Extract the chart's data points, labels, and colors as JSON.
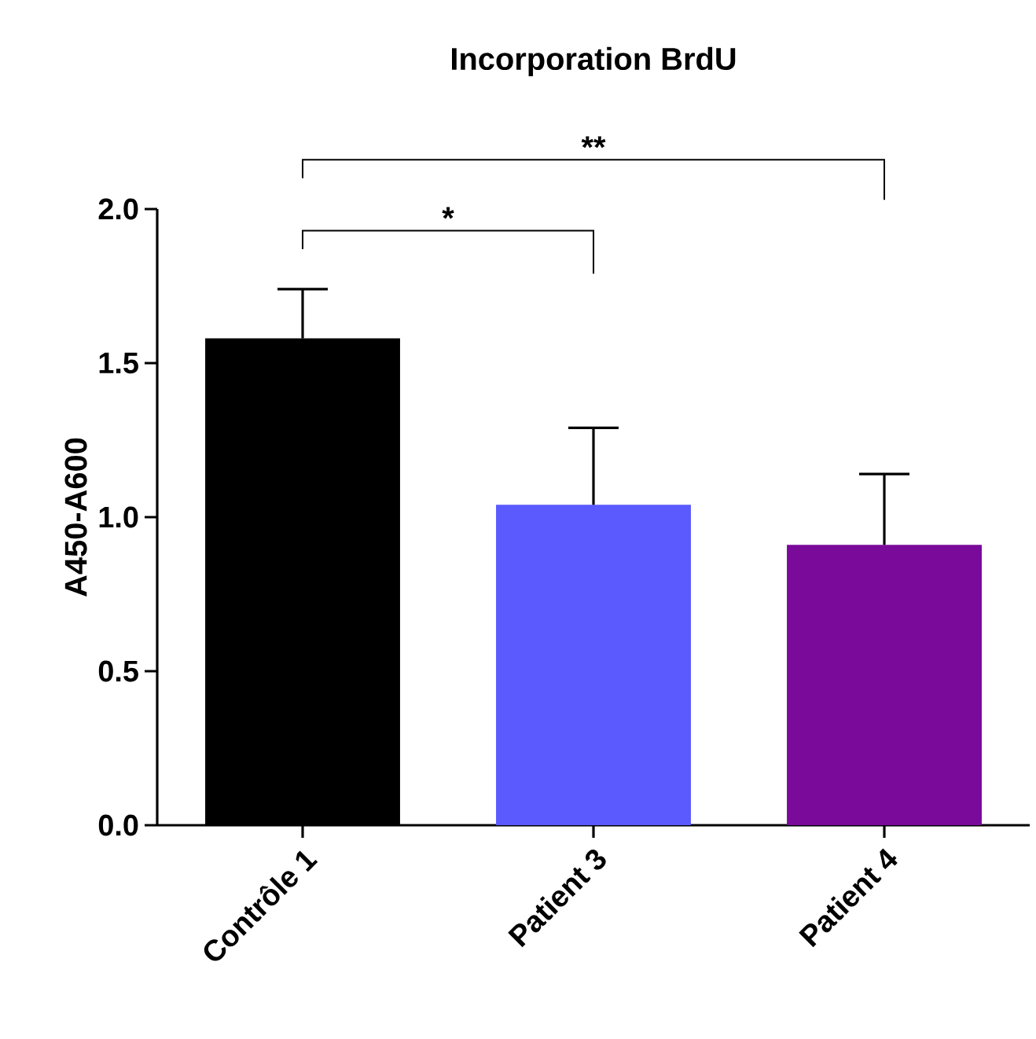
{
  "chart_data": {
    "type": "bar",
    "title": "Incorporation BrdU",
    "ylabel": "A450-A600",
    "categories": [
      "Contrôle 1",
      "Patient 3",
      "Patient 4"
    ],
    "values": [
      1.58,
      1.04,
      0.91
    ],
    "colors": [
      "#000000",
      "#5a5aff",
      "#7a0a9a"
    ],
    "errors": [
      [
        1.58,
        1.74
      ],
      [
        1.04,
        1.29
      ],
      [
        0.91,
        1.14
      ]
    ],
    "ylim": [
      0,
      2.0
    ],
    "yticks": [
      {
        "value": 0,
        "label": "0.0"
      },
      {
        "value": 0.5,
        "label": "0.5"
      },
      {
        "value": 1.0,
        "label": "1.0"
      },
      {
        "value": 1.5,
        "label": "1.5"
      },
      {
        "value": 2.0,
        "label": "2.0"
      }
    ],
    "annotations": [
      "*",
      "**"
    ],
    "grid": false
  }
}
